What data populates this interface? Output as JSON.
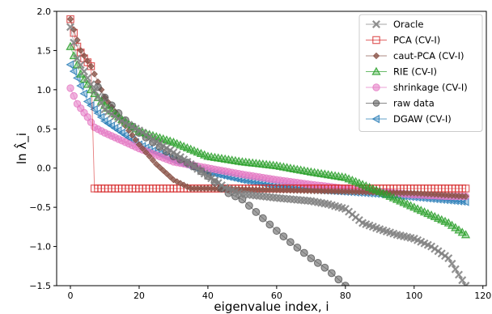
{
  "chart_data": {
    "type": "line",
    "xlabel": "eigenvalue index, i",
    "ylabel": "ln λ̂_i",
    "xlim": [
      -4,
      121
    ],
    "ylim": [
      -1.5,
      2.0
    ],
    "xticks": [
      0,
      20,
      40,
      60,
      80,
      100,
      120
    ],
    "yticks": [
      -1.5,
      -1.0,
      -0.5,
      0.0,
      0.5,
      1.0,
      1.5,
      2.0
    ],
    "ytick_labels": [
      "−1.5",
      "−1.0",
      "−0.5",
      "0.0",
      "0.5",
      "1.0",
      "1.5",
      "2.0"
    ],
    "grid": false,
    "legend_position": "top-right",
    "series": [
      {
        "name": "Oracle",
        "color": "#7f7f7f",
        "marker": "x",
        "x": [
          0,
          2,
          5,
          10,
          15,
          20,
          30,
          40,
          45,
          50,
          60,
          70,
          75,
          80,
          85,
          90,
          95,
          100,
          105,
          110,
          115
        ],
        "y": [
          1.8,
          1.4,
          1.15,
          0.75,
          0.6,
          0.48,
          0.2,
          -0.1,
          -0.25,
          -0.33,
          -0.38,
          -0.42,
          -0.46,
          -0.52,
          -0.7,
          -0.78,
          -0.85,
          -0.9,
          -1.0,
          -1.15,
          -1.5
        ]
      },
      {
        "name": "PCA (CV-I)",
        "color": "#d62728",
        "marker": "square",
        "x": [
          0,
          2,
          4,
          6,
          7,
          10,
          20,
          40,
          60,
          80,
          100,
          115
        ],
        "y": [
          1.9,
          1.55,
          1.4,
          1.3,
          -0.26,
          -0.26,
          -0.26,
          -0.26,
          -0.26,
          -0.26,
          -0.26,
          -0.26
        ]
      },
      {
        "name": "caut-PCA (CV-I)",
        "color": "#8c564b",
        "marker": "diamond",
        "x": [
          0,
          3,
          6,
          10,
          15,
          20,
          25,
          30,
          35,
          40,
          60,
          80,
          100,
          115
        ],
        "y": [
          1.9,
          1.5,
          1.3,
          0.9,
          0.6,
          0.3,
          0.05,
          -0.15,
          -0.26,
          -0.26,
          -0.28,
          -0.3,
          -0.32,
          -0.36
        ]
      },
      {
        "name": "RIE (CV-I)",
        "color": "#2ca02c",
        "marker": "triangle",
        "x": [
          0,
          3,
          6,
          10,
          15,
          20,
          30,
          40,
          50,
          60,
          70,
          80,
          90,
          100,
          110,
          115
        ],
        "y": [
          1.55,
          1.2,
          1.0,
          0.8,
          0.62,
          0.47,
          0.33,
          0.15,
          0.08,
          0.03,
          -0.05,
          -0.12,
          -0.3,
          -0.5,
          -0.7,
          -0.85
        ]
      },
      {
        "name": "shrinkage (CV-I)",
        "color": "#e377c2",
        "marker": "circle",
        "x": [
          0,
          2,
          5,
          7,
          10,
          15,
          20,
          30,
          40,
          50,
          60,
          70,
          80,
          90,
          100,
          110,
          115
        ],
        "y": [
          1.02,
          0.82,
          0.65,
          0.52,
          0.45,
          0.35,
          0.25,
          0.08,
          0.0,
          -0.08,
          -0.15,
          -0.21,
          -0.26,
          -0.3,
          -0.34,
          -0.36,
          -0.36
        ]
      },
      {
        "name": "raw data",
        "color": "#555555",
        "marker": "circle",
        "x": [
          7,
          10,
          15,
          20,
          25,
          30,
          35,
          40,
          45,
          50,
          55,
          60,
          65,
          70,
          75,
          80
        ],
        "y": [
          1.1,
          0.9,
          0.65,
          0.45,
          0.3,
          0.15,
          0.05,
          -0.1,
          -0.3,
          -0.4,
          -0.6,
          -0.8,
          -0.98,
          -1.15,
          -1.3,
          -1.5
        ]
      },
      {
        "name": "DGAW (CV-I)",
        "color": "#1f77b4",
        "marker": "triangle-left",
        "x": [
          0,
          2,
          5,
          10,
          20,
          30,
          40,
          50,
          60,
          70,
          80,
          90,
          100,
          110,
          115
        ],
        "y": [
          1.32,
          1.15,
          0.85,
          0.6,
          0.3,
          0.1,
          -0.05,
          -0.15,
          -0.22,
          -0.27,
          -0.3,
          -0.33,
          -0.37,
          -0.41,
          -0.43
        ]
      }
    ]
  }
}
